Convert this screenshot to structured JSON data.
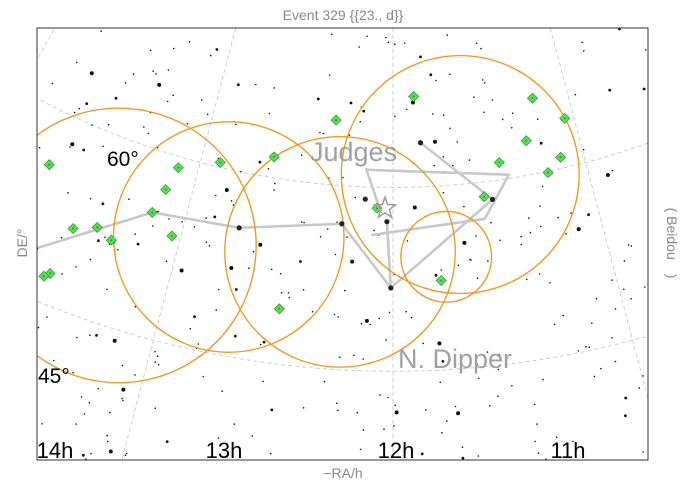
{
  "chart_data": {
    "type": "scatter",
    "title": "Event 329 {{23., d}}",
    "xlabel": "−RA/h",
    "ylabel": "DE/°",
    "right_label": "( Beidou )",
    "x_ticks": [
      "14h",
      "13h",
      "12h",
      "11h"
    ],
    "y_ticks": [
      "60°",
      "45°"
    ],
    "xlim": [
      14.0,
      10.5
    ],
    "grid": true,
    "colors": {
      "frame": "#333333",
      "grid": "#c8c8c8",
      "stars": "#111111",
      "constellation_lines": "#c8c8c8",
      "circles": "#f0941e",
      "satellites_fill": "#5fdc5f",
      "satellites_edge": "#2e9e2e",
      "event_marker": "#a0a0a0",
      "labels": "#a0a0a0"
    },
    "constellation_labels": [
      "Judges",
      "N. Dipper"
    ],
    "constellation_stars": [
      {
        "ra": 13.6,
        "de": 48.9
      },
      {
        "ra": 13.16,
        "de": 55.0
      },
      {
        "ra": 12.74,
        "de": 55.5
      },
      {
        "ra": 12.25,
        "de": 56.9
      },
      {
        "ra": 12.01,
        "de": 51.8
      },
      {
        "ra": 11.5,
        "de": 58.5
      },
      {
        "ra": 11.85,
        "de": 63.6
      },
      {
        "ra": 12.03,
        "de": 57.2
      },
      {
        "ra": 12.14,
        "de": 59.0
      }
    ],
    "constellation_segments": [
      [
        [
          13.6,
          48.9
        ],
        [
          13.16,
          55.0
        ]
      ],
      [
        [
          13.16,
          55.0
        ],
        [
          12.74,
          55.5
        ]
      ],
      [
        [
          12.74,
          55.5
        ],
        [
          12.25,
          56.9
        ]
      ],
      [
        [
          12.25,
          56.9
        ],
        [
          12.01,
          51.8
        ]
      ],
      [
        [
          12.01,
          51.8
        ],
        [
          11.5,
          58.5
        ]
      ],
      [
        [
          11.5,
          58.5
        ],
        [
          11.85,
          63.6
        ]
      ],
      [
        [
          12.01,
          51.8
        ],
        [
          12.03,
          57.2
        ]
      ],
      [
        [
          12.06,
          58.0
        ],
        [
          12.14,
          61.4
        ]
      ],
      [
        [
          12.14,
          61.4
        ],
        [
          11.4,
          60.3
        ]
      ],
      [
        [
          11.4,
          60.3
        ],
        [
          11.55,
          57.0
        ]
      ],
      [
        [
          11.55,
          57.0
        ],
        [
          12.1,
          56.1
        ]
      ]
    ],
    "event_marker": {
      "ra": 12.04,
      "de": 58.3
    },
    "satellite_circles": [
      {
        "ra": 13.26,
        "de": 51.6,
        "r_deg": 11.2
      },
      {
        "ra": 12.78,
        "de": 54.6,
        "r_deg": 9.4
      },
      {
        "ra": 12.25,
        "de": 54.6,
        "r_deg": 9.4
      },
      {
        "ra": 11.75,
        "de": 54.2,
        "r_deg": 3.7
      },
      {
        "ra": 11.65,
        "de": 60.8,
        "r_deg": 9.7
      }
    ],
    "satellites": [
      {
        "ra": 13.7,
        "de": 55.6
      },
      {
        "ra": 13.48,
        "de": 51.6
      },
      {
        "ra": 13.38,
        "de": 52.4
      },
      {
        "ra": 13.3,
        "de": 51.8
      },
      {
        "ra": 13.5,
        "de": 47.5
      },
      {
        "ra": 13.52,
        "de": 47.1
      },
      {
        "ra": 13.1,
        "de": 59.1
      },
      {
        "ra": 13.13,
        "de": 57.1
      },
      {
        "ra": 13.16,
        "de": 55.0
      },
      {
        "ra": 13.04,
        "de": 53.6
      },
      {
        "ra": 12.9,
        "de": 60.4
      },
      {
        "ra": 12.63,
        "de": 61.7
      },
      {
        "ra": 12.32,
        "de": 65.3
      },
      {
        "ra": 12.5,
        "de": 49.5
      },
      {
        "ra": 12.08,
        "de": 58.3
      },
      {
        "ra": 11.88,
        "de": 67.4
      },
      {
        "ra": 11.78,
        "de": 52.3
      },
      {
        "ra": 11.54,
        "de": 58.8
      },
      {
        "ra": 11.44,
        "de": 61.4
      },
      {
        "ra": 11.28,
        "de": 62.8
      },
      {
        "ra": 11.2,
        "de": 66.1
      },
      {
        "ra": 11.2,
        "de": 59.9
      },
      {
        "ra": 11.12,
        "de": 60.9
      },
      {
        "ra": 11.05,
        "de": 63.9
      }
    ],
    "legend": "none"
  }
}
